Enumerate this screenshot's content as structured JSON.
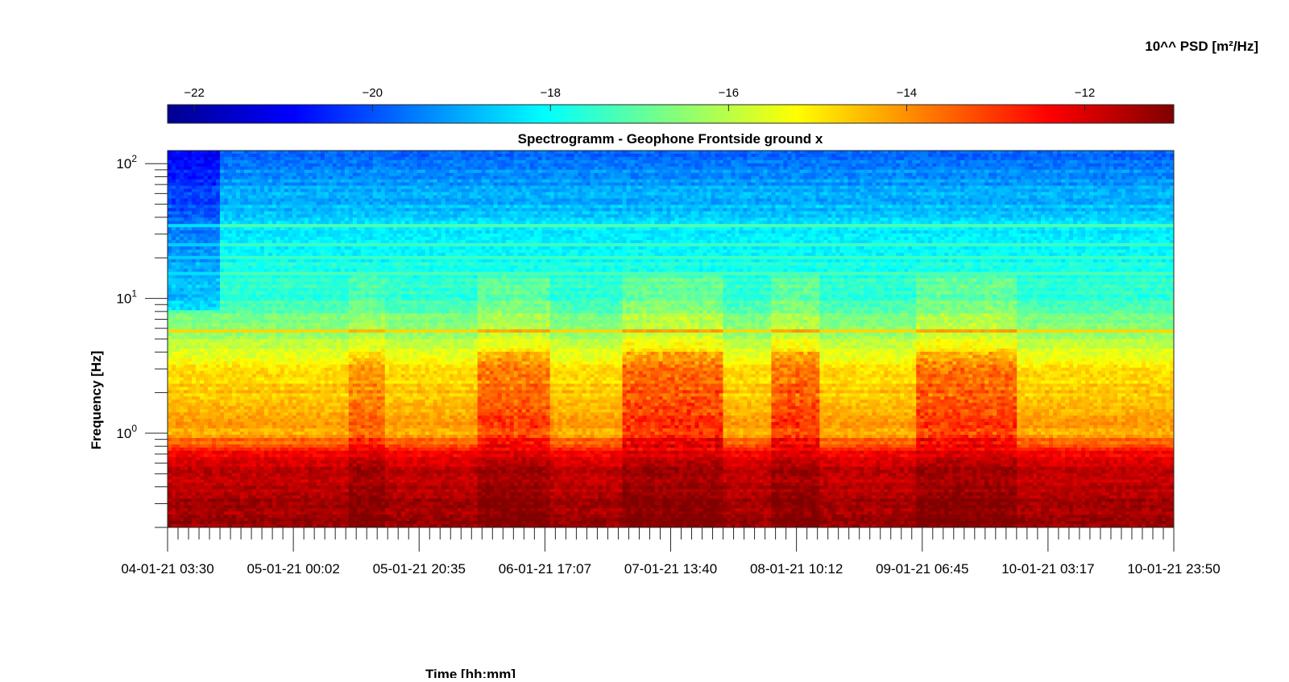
{
  "chart_data": {
    "type": "heatmap",
    "title": "Spectrogramm - Geophone Frontside ground x",
    "xlabel": "Time [hh:mm]",
    "ylabel": "Frequency [Hz]",
    "colorbar_label": "10^^ PSD [m²/Hz]",
    "colormap": "jet",
    "colorbar_range": [
      -22.3,
      -11.0
    ],
    "colorbar_ticks": [
      -22,
      -20,
      -18,
      -16,
      -14,
      -12
    ],
    "y_scale": "log",
    "y_range": [
      0.2,
      125
    ],
    "y_ticks": [
      {
        "value": 1,
        "base": "10",
        "exp": "0"
      },
      {
        "value": 10,
        "base": "10",
        "exp": "1"
      },
      {
        "value": 100,
        "base": "10",
        "exp": "2"
      }
    ],
    "x_tick_labels": [
      "04-01-21 03:30",
      "05-01-21 00:02",
      "05-01-21 20:35",
      "06-01-21 17:07",
      "07-01-21 13:40",
      "08-01-21 10:12",
      "09-01-21 06:45",
      "10-01-21 03:17",
      "10-01-21 23:50"
    ],
    "grid": false,
    "colorbar_position": "top",
    "psd_profile_by_frequency": [
      {
        "freq": 0.2,
        "psd": -11.4
      },
      {
        "freq": 0.3,
        "psd": -11.5
      },
      {
        "freq": 0.5,
        "psd": -11.7
      },
      {
        "freq": 0.7,
        "psd": -12.4
      },
      {
        "freq": 1.0,
        "psd": -14.2
      },
      {
        "freq": 2.0,
        "psd": -14.6
      },
      {
        "freq": 3.0,
        "psd": -15.0
      },
      {
        "freq": 4.0,
        "psd": -15.6
      },
      {
        "freq": 6.0,
        "psd": -16.5
      },
      {
        "freq": 10.0,
        "psd": -17.5
      },
      {
        "freq": 20.0,
        "psd": -17.9
      },
      {
        "freq": 50.0,
        "psd": -18.8
      },
      {
        "freq": 125.0,
        "psd": -19.8
      }
    ],
    "narrow_bands": [
      {
        "freq": 5.8,
        "psd": -14.6
      },
      {
        "freq": 15.5,
        "psd": -17.0
      },
      {
        "freq": 20.5,
        "psd": -17.2
      },
      {
        "freq": 24.5,
        "psd": -17.2
      },
      {
        "freq": 35.0,
        "psd": -17.0
      }
    ],
    "activity_windows": [
      {
        "start": "05-01-21 09:00",
        "end": "05-01-21 15:00",
        "psd_increase": 0.8
      },
      {
        "start": "06-01-21 06:00",
        "end": "06-01-21 18:00",
        "psd_increase": 1.2
      },
      {
        "start": "07-01-21 06:00",
        "end": "07-01-21 22:00",
        "psd_increase": 1.4
      },
      {
        "start": "08-01-21 06:00",
        "end": "08-01-21 14:00",
        "psd_increase": 1.3
      },
      {
        "start": "09-01-21 06:00",
        "end": "09-01-21 22:00",
        "psd_increase": 1.3
      }
    ]
  }
}
